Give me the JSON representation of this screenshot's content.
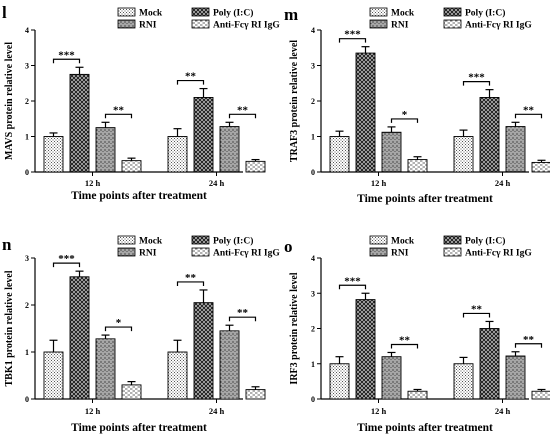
{
  "legend": {
    "series": [
      "Mock",
      "Poly (I:C)",
      "RNI",
      "Anti-Fcγ RI IgG"
    ]
  },
  "xlabel": "Time points after treatment",
  "chart_data": [
    {
      "type": "bar",
      "panel": "l",
      "ylabel": "MAVS protein relative level",
      "ylim": [
        0,
        4
      ],
      "yticks": [
        0,
        1,
        2,
        3,
        4
      ],
      "categories": [
        "12 h",
        "24 h"
      ],
      "series": [
        {
          "name": "Mock",
          "values": [
            1.0,
            1.0
          ],
          "errors": [
            0.1,
            0.22
          ]
        },
        {
          "name": "Poly (I:C)",
          "values": [
            2.75,
            2.1
          ],
          "errors": [
            0.2,
            0.25
          ]
        },
        {
          "name": "RNI",
          "values": [
            1.25,
            1.28
          ],
          "errors": [
            0.15,
            0.12
          ]
        },
        {
          "name": "Anti-Fcγ RI IgG",
          "values": [
            0.32,
            0.3
          ],
          "errors": [
            0.07,
            0.05
          ]
        }
      ],
      "significance": [
        {
          "category": 0,
          "from": 0,
          "to": 1,
          "label": "***"
        },
        {
          "category": 0,
          "from": 2,
          "to": 3,
          "label": "**"
        },
        {
          "category": 1,
          "from": 0,
          "to": 1,
          "label": "**"
        },
        {
          "category": 1,
          "from": 2,
          "to": 3,
          "label": "**"
        }
      ]
    },
    {
      "type": "bar",
      "panel": "m",
      "ylabel": "TRAF3 protein relative level",
      "ylim": [
        0,
        4
      ],
      "yticks": [
        0,
        1,
        2,
        3,
        4
      ],
      "categories": [
        "12 h",
        "24 h"
      ],
      "series": [
        {
          "name": "Mock",
          "values": [
            1.0,
            1.0
          ],
          "errors": [
            0.15,
            0.18
          ]
        },
        {
          "name": "Poly (I:C)",
          "values": [
            3.35,
            2.1
          ],
          "errors": [
            0.18,
            0.22
          ]
        },
        {
          "name": "RNI",
          "values": [
            1.12,
            1.28
          ],
          "errors": [
            0.15,
            0.12
          ]
        },
        {
          "name": "Anti-Fcγ RI IgG",
          "values": [
            0.35,
            0.27
          ],
          "errors": [
            0.08,
            0.06
          ]
        }
      ],
      "significance": [
        {
          "category": 0,
          "from": 0,
          "to": 1,
          "label": "***"
        },
        {
          "category": 0,
          "from": 2,
          "to": 3,
          "label": "*"
        },
        {
          "category": 1,
          "from": 0,
          "to": 1,
          "label": "***"
        },
        {
          "category": 1,
          "from": 2,
          "to": 3,
          "label": "**"
        }
      ]
    },
    {
      "type": "bar",
      "panel": "n",
      "ylabel": "TBK1 protein relative level",
      "ylim": [
        0,
        3
      ],
      "yticks": [
        0,
        1,
        2,
        3
      ],
      "categories": [
        "12 h",
        "24 h"
      ],
      "series": [
        {
          "name": "Mock",
          "values": [
            1.0,
            1.0
          ],
          "errors": [
            0.25,
            0.25
          ]
        },
        {
          "name": "Poly (I:C)",
          "values": [
            2.6,
            2.05
          ],
          "errors": [
            0.12,
            0.27
          ]
        },
        {
          "name": "RNI",
          "values": [
            1.28,
            1.45
          ],
          "errors": [
            0.08,
            0.12
          ]
        },
        {
          "name": "Anti-Fcγ RI IgG",
          "values": [
            0.3,
            0.2
          ],
          "errors": [
            0.07,
            0.06
          ]
        }
      ],
      "significance": [
        {
          "category": 0,
          "from": 0,
          "to": 1,
          "label": "***"
        },
        {
          "category": 0,
          "from": 2,
          "to": 3,
          "label": "*"
        },
        {
          "category": 1,
          "from": 0,
          "to": 1,
          "label": "**"
        },
        {
          "category": 1,
          "from": 2,
          "to": 3,
          "label": "**"
        }
      ]
    },
    {
      "type": "bar",
      "panel": "o",
      "ylabel": "IRF3 protein relative level",
      "ylim": [
        0,
        4
      ],
      "yticks": [
        0,
        1,
        2,
        3,
        4
      ],
      "categories": [
        "12 h",
        "24 h"
      ],
      "series": [
        {
          "name": "Mock",
          "values": [
            1.0,
            1.0
          ],
          "errors": [
            0.2,
            0.18
          ]
        },
        {
          "name": "Poly (I:C)",
          "values": [
            2.82,
            2.0
          ],
          "errors": [
            0.18,
            0.2
          ]
        },
        {
          "name": "RNI",
          "values": [
            1.2,
            1.22
          ],
          "errors": [
            0.12,
            0.12
          ]
        },
        {
          "name": "Anti-Fcγ RI IgG",
          "values": [
            0.22,
            0.22
          ],
          "errors": [
            0.05,
            0.05
          ]
        }
      ],
      "significance": [
        {
          "category": 0,
          "from": 0,
          "to": 1,
          "label": "***"
        },
        {
          "category": 0,
          "from": 2,
          "to": 3,
          "label": "**"
        },
        {
          "category": 1,
          "from": 0,
          "to": 1,
          "label": "**"
        },
        {
          "category": 1,
          "from": 2,
          "to": 3,
          "label": "**"
        }
      ]
    }
  ]
}
